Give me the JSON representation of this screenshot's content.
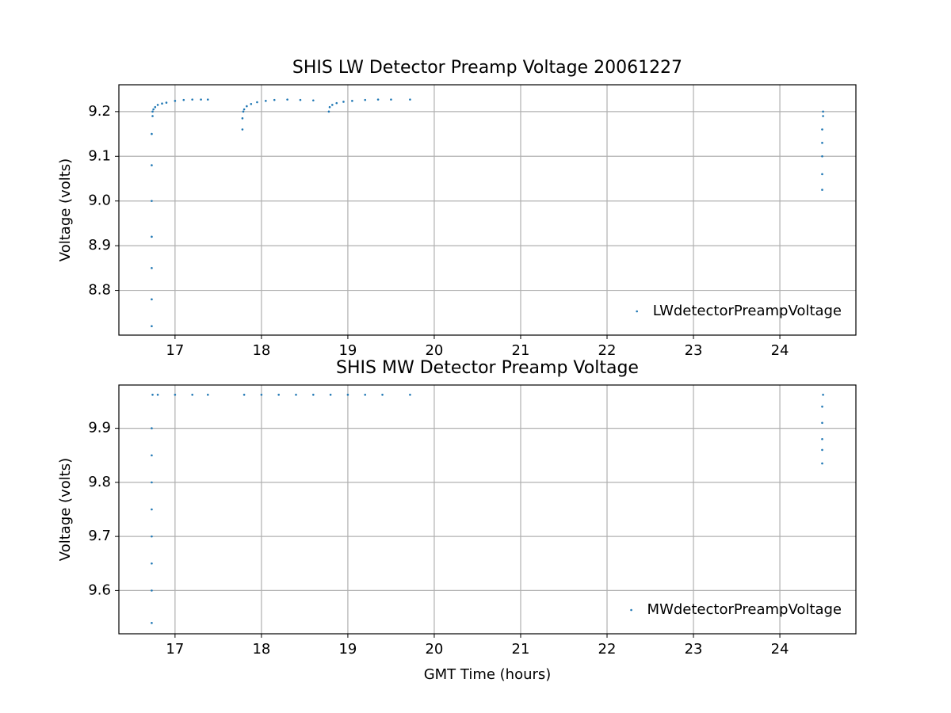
{
  "chart_data": [
    {
      "type": "scatter",
      "title": "SHIS LW Detector Preamp Voltage 20061227",
      "y_label": "Voltage (volts)",
      "x": [
        16.73,
        16.73,
        16.73,
        16.73,
        16.73,
        16.73,
        16.73,
        16.74,
        16.74,
        16.75,
        16.77,
        16.8,
        16.85,
        16.9,
        17.0,
        17.1,
        17.2,
        17.3,
        17.38,
        17.78,
        17.78,
        17.79,
        17.8,
        17.83,
        17.88,
        17.95,
        18.05,
        18.15,
        18.3,
        18.45,
        18.6,
        18.78,
        18.79,
        18.82,
        18.87,
        18.95,
        19.05,
        19.2,
        19.35,
        19.5,
        19.72,
        24.49,
        24.49,
        24.49,
        24.49,
        24.49,
        24.5,
        24.5
      ],
      "series": [
        {
          "name": "LWdetectorPreampVoltage",
          "color": "#1f77b4",
          "values": [
            8.72,
            8.78,
            8.85,
            8.92,
            9.0,
            9.08,
            9.15,
            9.19,
            9.2,
            9.205,
            9.21,
            9.215,
            9.218,
            9.22,
            9.224,
            9.226,
            9.227,
            9.227,
            9.227,
            9.16,
            9.185,
            9.2,
            9.205,
            9.212,
            9.217,
            9.221,
            9.224,
            9.226,
            9.227,
            9.226,
            9.225,
            9.2,
            9.21,
            9.215,
            9.219,
            9.222,
            9.224,
            9.226,
            9.227,
            9.227,
            9.227,
            9.025,
            9.06,
            9.1,
            9.13,
            9.16,
            9.19,
            9.2
          ]
        }
      ],
      "xlim": [
        16.35,
        24.88
      ],
      "xticks": [
        17,
        18,
        19,
        20,
        21,
        22,
        23,
        24
      ],
      "ylim": [
        8.7,
        9.26
      ],
      "yticks": [
        8.8,
        8.9,
        {
          "value": 9,
          "label": "9.0"
        },
        9.1,
        9.2
      ],
      "grid": true,
      "legend": "lower right"
    },
    {
      "type": "scatter",
      "title": "SHIS MW Detector Preamp Voltage",
      "x_label": "GMT Time (hours)",
      "y_label": "Voltage (volts)",
      "x": [
        16.73,
        16.73,
        16.73,
        16.73,
        16.73,
        16.73,
        16.73,
        16.73,
        16.74,
        16.8,
        17.0,
        17.2,
        17.38,
        17.8,
        18.0,
        18.2,
        18.4,
        18.6,
        18.8,
        19.0,
        19.2,
        19.4,
        19.72,
        24.49,
        24.49,
        24.49,
        24.49,
        24.49,
        24.5
      ],
      "series": [
        {
          "name": "MWdetectorPreampVoltage",
          "color": "#1f77b4",
          "values": [
            9.54,
            9.6,
            9.65,
            9.7,
            9.75,
            9.8,
            9.85,
            9.9,
            9.962,
            9.962,
            9.962,
            9.962,
            9.962,
            9.962,
            9.962,
            9.962,
            9.962,
            9.962,
            9.962,
            9.962,
            9.962,
            9.962,
            9.962,
            9.835,
            9.86,
            9.88,
            9.91,
            9.94,
            9.962
          ]
        }
      ],
      "xlim": [
        16.35,
        24.88
      ],
      "xticks": [
        17,
        18,
        19,
        20,
        21,
        22,
        23,
        24
      ],
      "ylim": [
        9.52,
        9.98
      ],
      "yticks": [
        9.6,
        9.7,
        9.8,
        9.9
      ],
      "grid": true,
      "legend": "lower right"
    }
  ]
}
